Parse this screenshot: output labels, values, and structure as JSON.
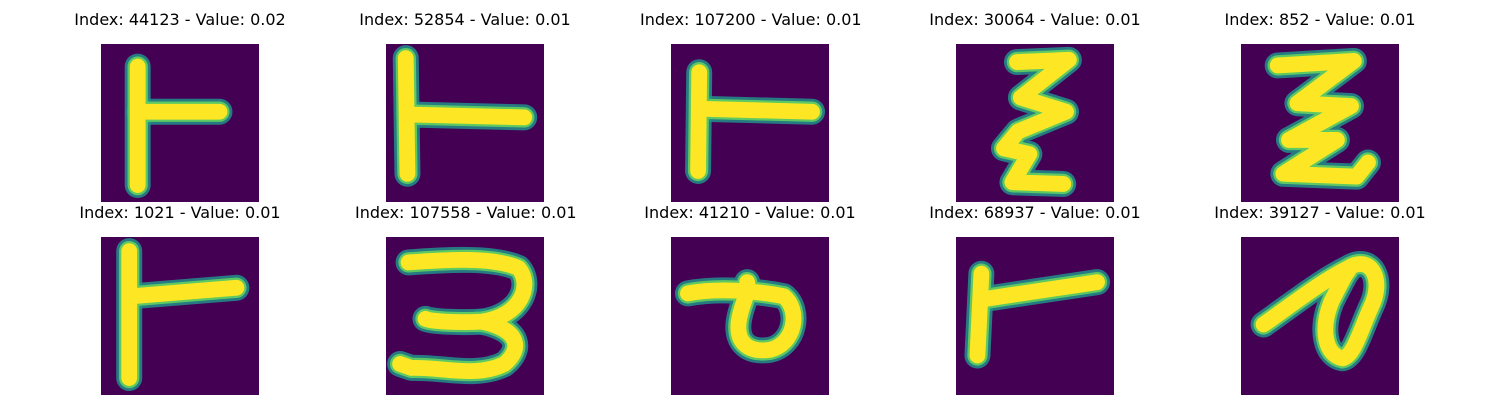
{
  "colors": {
    "background": "#440154",
    "stroke_outer": "#21918c",
    "stroke_mid": "#5ec962",
    "stroke_core": "#fde725"
  },
  "panels": [
    {
      "title": "Index: 44123 - Value: 0.02",
      "glyph": "t-left-a"
    },
    {
      "title": "Index: 52854 - Value: 0.01",
      "glyph": "t-left-b"
    },
    {
      "title": "Index: 107200 - Value: 0.01",
      "glyph": "t-left-c"
    },
    {
      "title": "Index: 30064 - Value: 0.01",
      "glyph": "zigzag-tall"
    },
    {
      "title": "Index: 852 - Value: 0.01",
      "glyph": "zigzag-wide"
    },
    {
      "title": "Index: 1021 - Value: 0.01",
      "glyph": "t-left-d"
    },
    {
      "title": "Index: 107558 - Value: 0.01",
      "glyph": "three"
    },
    {
      "title": "Index: 41210 - Value: 0.01",
      "glyph": "loop-p"
    },
    {
      "title": "Index: 68937 - Value: 0.01",
      "glyph": "t-left-e"
    },
    {
      "title": "Index: 39127 - Value: 0.01",
      "glyph": "loop-d"
    }
  ]
}
